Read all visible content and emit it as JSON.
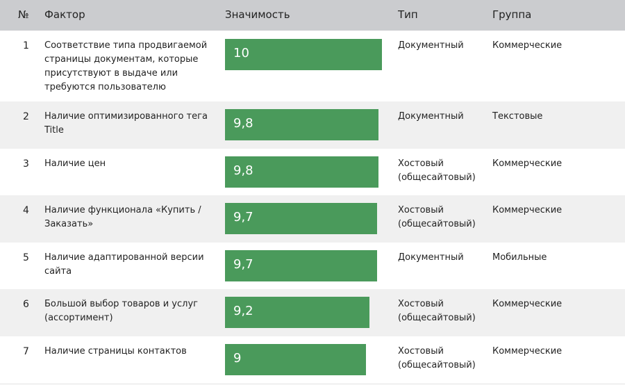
{
  "headers": {
    "num": "№",
    "factor": "Фактор",
    "value": "Значимость",
    "type": "Тип",
    "group": "Группа"
  },
  "colors": {
    "header_bg": "#cbcccf",
    "bar": "#4a9a5b",
    "row_alt": "#f0f0f0"
  },
  "chart_data": {
    "type": "bar",
    "orientation": "horizontal",
    "xlim": [
      0,
      10
    ],
    "categories": [
      "Соответствие типа продвигаемой страницы документам, которые присутствуют в выдаче или требуются пользователю",
      "Наличие оптимизированного тега Title",
      "Наличие цен",
      "Наличие функционала «Купить / Заказать»",
      "Наличие адаптированной версии сайта",
      "Большой выбор товаров и услуг (ассортимент)",
      "Наличие страницы контактов"
    ],
    "values": [
      10,
      9.8,
      9.8,
      9.7,
      9.7,
      9.2,
      9
    ],
    "rows": [
      {
        "num": "1",
        "factor": "Соответствие типа продвигаемой страницы документам, которые присутствуют в выдаче или требуются пользователю",
        "value": 10,
        "value_label": "10",
        "type": "Документный",
        "group": "Коммерческие"
      },
      {
        "num": "2",
        "factor": "Наличие оптимизированного тега Title",
        "value": 9.8,
        "value_label": "9,8",
        "type": "Документный",
        "group": "Текстовые"
      },
      {
        "num": "3",
        "factor": "Наличие цен",
        "value": 9.8,
        "value_label": "9,8",
        "type": "Хостовый (общесайтовый)",
        "group": "Коммерческие"
      },
      {
        "num": "4",
        "factor": "Наличие функционала «Купить / Заказать»",
        "value": 9.7,
        "value_label": "9,7",
        "type": "Хостовый (общесайтовый)",
        "group": "Коммерческие"
      },
      {
        "num": "5",
        "factor": "Наличие адаптированной версии сайта",
        "value": 9.7,
        "value_label": "9,7",
        "type": "Документный",
        "group": "Мобильные"
      },
      {
        "num": "6",
        "factor": "Большой выбор товаров и услуг (ассортимент)",
        "value": 9.2,
        "value_label": "9,2",
        "type": "Хостовый (общесайтовый)",
        "group": "Коммерческие"
      },
      {
        "num": "7",
        "factor": "Наличие страницы контактов",
        "value": 9,
        "value_label": "9",
        "type": "Хостовый (общесайтовый)",
        "group": "Коммерческие"
      }
    ]
  }
}
